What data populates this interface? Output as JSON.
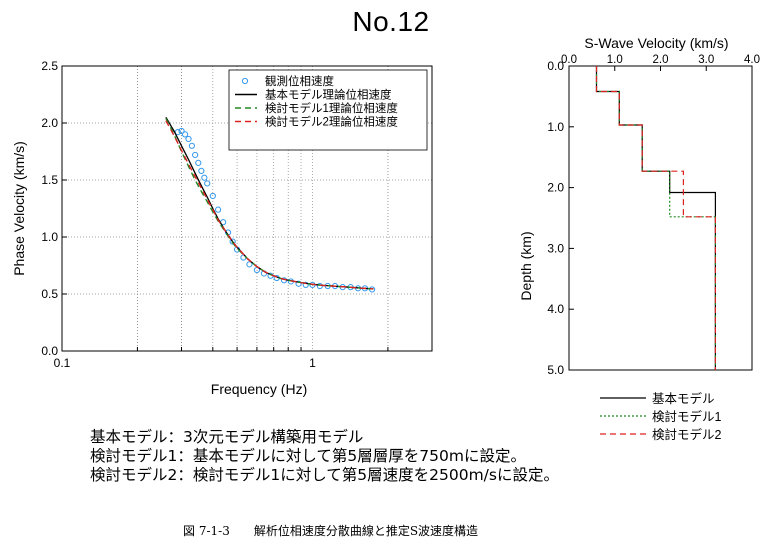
{
  "title": "No.12",
  "descriptions": [
    "基本モデル：3次元モデル構築用モデル",
    "検討モデル1：基本モデルに対して第5層層厚を750mに設定。",
    "検討モデル2：検討モデル1に対して第5層速度を2500m/sに設定。"
  ],
  "caption": "図 7-1-3　　解析位相速度分散曲線と推定S波速度構造",
  "chart_data": [
    {
      "type": "line",
      "xlabel": "Frequency (Hz)",
      "ylabel": "Phase Velocity (km/s)",
      "xscale": "log",
      "xlim": [
        0.1,
        3
      ],
      "ylim": [
        0,
        2.5
      ],
      "xticks": [
        {
          "v": 0.1,
          "label": "0.1"
        },
        {
          "v": 1,
          "label": "1"
        }
      ],
      "yticks": [
        {
          "v": 0,
          "label": "0.0"
        },
        {
          "v": 0.5,
          "label": "0.5"
        },
        {
          "v": 1.0,
          "label": "1.0"
        },
        {
          "v": 1.5,
          "label": "1.5"
        },
        {
          "v": 2.0,
          "label": "2.0"
        },
        {
          "v": 2.5,
          "label": "2.5"
        }
      ],
      "grid": true,
      "legend_position": "top-right",
      "series": [
        {
          "name": "観測位相速度",
          "style": "circles",
          "color": "#3399ee",
          "x": [
            0.29,
            0.3,
            0.31,
            0.32,
            0.33,
            0.34,
            0.35,
            0.36,
            0.37,
            0.38,
            0.4,
            0.42,
            0.44,
            0.46,
            0.48,
            0.5,
            0.53,
            0.56,
            0.6,
            0.64,
            0.68,
            0.72,
            0.77,
            0.82,
            0.88,
            0.94,
            1.0,
            1.07,
            1.15,
            1.23,
            1.32,
            1.42,
            1.52,
            1.62,
            1.73
          ],
          "y": [
            1.92,
            1.93,
            1.9,
            1.86,
            1.8,
            1.72,
            1.65,
            1.58,
            1.52,
            1.47,
            1.36,
            1.24,
            1.13,
            1.04,
            0.96,
            0.89,
            0.82,
            0.76,
            0.71,
            0.68,
            0.66,
            0.64,
            0.62,
            0.61,
            0.59,
            0.58,
            0.58,
            0.57,
            0.57,
            0.57,
            0.56,
            0.56,
            0.55,
            0.55,
            0.54
          ]
        },
        {
          "name": "基本モデル理論位相速度",
          "style": "solid",
          "color": "#000000",
          "x": [
            0.26,
            0.28,
            0.3,
            0.32,
            0.34,
            0.36,
            0.38,
            0.4,
            0.42,
            0.45,
            0.48,
            0.5,
            0.55,
            0.6,
            0.65,
            0.7,
            0.75,
            0.8,
            0.9,
            1.0,
            1.1,
            1.2,
            1.4,
            1.6,
            1.75
          ],
          "y": [
            2.05,
            1.93,
            1.8,
            1.68,
            1.56,
            1.45,
            1.35,
            1.25,
            1.16,
            1.05,
            0.96,
            0.91,
            0.81,
            0.74,
            0.69,
            0.66,
            0.635,
            0.62,
            0.6,
            0.585,
            0.575,
            0.57,
            0.56,
            0.55,
            0.545
          ]
        },
        {
          "name": "検討モデル1理論位相速度",
          "style": "dashed",
          "color": "#228822",
          "x": [
            0.26,
            0.28,
            0.3,
            0.32,
            0.34,
            0.36,
            0.38,
            0.4,
            0.42,
            0.45,
            0.48,
            0.5,
            0.55,
            0.6,
            0.65,
            0.7,
            0.75,
            0.8,
            0.9,
            1.0,
            1.1,
            1.2,
            1.4,
            1.6,
            1.75
          ],
          "y": [
            2.04,
            1.9,
            1.75,
            1.62,
            1.5,
            1.4,
            1.31,
            1.22,
            1.14,
            1.04,
            0.95,
            0.9,
            0.81,
            0.74,
            0.69,
            0.66,
            0.635,
            0.62,
            0.6,
            0.585,
            0.575,
            0.57,
            0.56,
            0.55,
            0.545
          ]
        },
        {
          "name": "検討モデル2理論位相速度",
          "style": "dashed",
          "color": "#dd2222",
          "x": [
            0.26,
            0.28,
            0.3,
            0.32,
            0.34,
            0.36,
            0.38,
            0.4,
            0.42,
            0.45,
            0.48,
            0.5,
            0.55,
            0.6,
            0.65,
            0.7,
            0.75,
            0.8,
            0.9,
            1.0,
            1.1,
            1.2,
            1.4,
            1.6,
            1.75
          ],
          "y": [
            2.02,
            1.89,
            1.76,
            1.64,
            1.53,
            1.43,
            1.33,
            1.24,
            1.15,
            1.05,
            0.96,
            0.91,
            0.81,
            0.74,
            0.69,
            0.66,
            0.635,
            0.62,
            0.6,
            0.585,
            0.575,
            0.57,
            0.56,
            0.55,
            0.545
          ]
        }
      ]
    },
    {
      "type": "line",
      "title": "S-Wave Velocity (km/s)",
      "ylabel": "Depth (km)",
      "xlim": [
        0,
        4
      ],
      "ylim": [
        0,
        5
      ],
      "y_inverted": true,
      "x_axis_position": "top",
      "xticks": [
        {
          "v": 0,
          "label": "0.0"
        },
        {
          "v": 1,
          "label": "1.0"
        },
        {
          "v": 2,
          "label": "2.0"
        },
        {
          "v": 3,
          "label": "3.0"
        },
        {
          "v": 4,
          "label": "4.0"
        }
      ],
      "yticks": [
        {
          "v": 0,
          "label": "0.0"
        },
        {
          "v": 1,
          "label": "1.0"
        },
        {
          "v": 2,
          "label": "2.0"
        },
        {
          "v": 3,
          "label": "3.0"
        },
        {
          "v": 4,
          "label": "4.0"
        },
        {
          "v": 5,
          "label": "5.0"
        }
      ],
      "grid": false,
      "legend_position": "below",
      "series": [
        {
          "name": "基本モデル",
          "style": "solid",
          "color": "#000000",
          "velocity": [
            0.6,
            1.1,
            1.6,
            2.2,
            3.2
          ],
          "layer_bottoms": [
            0.42,
            0.97,
            1.73,
            2.08
          ]
        },
        {
          "name": "検討モデル1",
          "style": "dotted",
          "color": "#228822",
          "velocity": [
            0.6,
            1.1,
            1.6,
            2.2,
            3.2
          ],
          "layer_bottoms": [
            0.42,
            0.97,
            1.73,
            2.48
          ]
        },
        {
          "name": "検討モデル2",
          "style": "dashed",
          "color": "#dd2222",
          "velocity": [
            0.6,
            1.1,
            1.6,
            2.5,
            3.2
          ],
          "layer_bottoms": [
            0.42,
            0.97,
            1.73,
            2.48
          ]
        }
      ]
    }
  ]
}
